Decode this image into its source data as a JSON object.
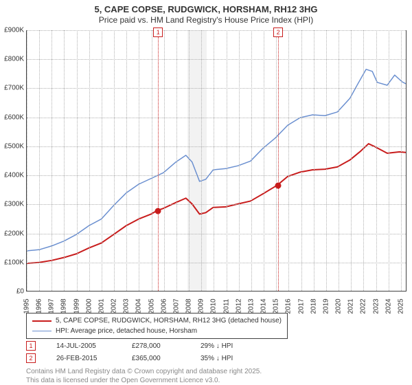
{
  "title": "5, CAPE COPSE, RUDGWICK, HORSHAM, RH12 3HG",
  "subtitle": "Price paid vs. HM Land Registry's House Price Index (HPI)",
  "chart": {
    "type": "line",
    "background_color": "#ffffff",
    "grid_color": "#b0b0b0",
    "axis_color": "#404040",
    "label_fontsize": 10,
    "title_fontsize": 13,
    "y": {
      "min": 0,
      "max": 900000,
      "step": 100000,
      "ticks": [
        "£0",
        "£100K",
        "£200K",
        "£300K",
        "£400K",
        "£500K",
        "£600K",
        "£700K",
        "£800K",
        "£900K"
      ]
    },
    "x": {
      "min": 1995,
      "max": 2025.5,
      "ticks": [
        1995,
        1996,
        1997,
        1998,
        1999,
        2000,
        2001,
        2002,
        2003,
        2004,
        2005,
        2006,
        2007,
        2008,
        2009,
        2010,
        2011,
        2012,
        2013,
        2014,
        2015,
        2016,
        2017,
        2018,
        2019,
        2020,
        2021,
        2022,
        2023,
        2024,
        2025
      ]
    },
    "shaded_bands": [
      {
        "start": 2007.9,
        "end": 2009.4,
        "color": "#e9e9e9"
      }
    ],
    "series": [
      {
        "label": "5, CAPE COPSE, RUDGWICK, HORSHAM, RH12 3HG (detached house)",
        "color": "#c81c1c",
        "line_width": 2,
        "points": [
          [
            1995,
            95000
          ],
          [
            1996,
            98000
          ],
          [
            1997,
            105000
          ],
          [
            1998,
            115000
          ],
          [
            1999,
            128000
          ],
          [
            2000,
            148000
          ],
          [
            2001,
            165000
          ],
          [
            2002,
            195000
          ],
          [
            2003,
            225000
          ],
          [
            2004,
            248000
          ],
          [
            2005,
            265000
          ],
          [
            2005.53,
            278000
          ],
          [
            2006,
            285000
          ],
          [
            2007,
            305000
          ],
          [
            2007.8,
            320000
          ],
          [
            2008.3,
            300000
          ],
          [
            2008.9,
            265000
          ],
          [
            2009.4,
            270000
          ],
          [
            2010,
            288000
          ],
          [
            2011,
            290000
          ],
          [
            2012,
            300000
          ],
          [
            2013,
            310000
          ],
          [
            2014,
            335000
          ],
          [
            2015.16,
            365000
          ],
          [
            2016,
            395000
          ],
          [
            2017,
            410000
          ],
          [
            2018,
            418000
          ],
          [
            2019,
            420000
          ],
          [
            2020,
            428000
          ],
          [
            2021,
            452000
          ],
          [
            2021.8,
            480000
          ],
          [
            2022.5,
            508000
          ],
          [
            2023,
            498000
          ],
          [
            2024,
            475000
          ],
          [
            2025,
            480000
          ],
          [
            2025.5,
            478000
          ]
        ]
      },
      {
        "label": "HPI: Average price, detached house, Horsham",
        "color": "#6a8fd0",
        "line_width": 1.5,
        "points": [
          [
            1995,
            138000
          ],
          [
            1996,
            142000
          ],
          [
            1997,
            155000
          ],
          [
            1998,
            172000
          ],
          [
            1999,
            195000
          ],
          [
            2000,
            225000
          ],
          [
            2001,
            248000
          ],
          [
            2002,
            295000
          ],
          [
            2003,
            338000
          ],
          [
            2004,
            368000
          ],
          [
            2005,
            388000
          ],
          [
            2006,
            408000
          ],
          [
            2007,
            445000
          ],
          [
            2007.8,
            468000
          ],
          [
            2008.3,
            445000
          ],
          [
            2008.9,
            378000
          ],
          [
            2009.4,
            385000
          ],
          [
            2010,
            418000
          ],
          [
            2011,
            422000
          ],
          [
            2012,
            432000
          ],
          [
            2013,
            448000
          ],
          [
            2014,
            492000
          ],
          [
            2015,
            528000
          ],
          [
            2016,
            572000
          ],
          [
            2017,
            598000
          ],
          [
            2018,
            608000
          ],
          [
            2019,
            605000
          ],
          [
            2020,
            618000
          ],
          [
            2021,
            665000
          ],
          [
            2021.6,
            712000
          ],
          [
            2022.3,
            765000
          ],
          [
            2022.8,
            758000
          ],
          [
            2023.2,
            720000
          ],
          [
            2024,
            710000
          ],
          [
            2024.6,
            745000
          ],
          [
            2025.2,
            722000
          ],
          [
            2025.5,
            715000
          ]
        ]
      }
    ],
    "events": [
      {
        "id": "1",
        "year": 2005.53,
        "date": "14-JUL-2005",
        "price": "£278,000",
        "delta": "29% ↓ HPI",
        "color": "#c81c1c",
        "value": 278000
      },
      {
        "id": "2",
        "year": 2015.16,
        "date": "26-FEB-2015",
        "price": "£365,000",
        "delta": "35% ↓ HPI",
        "color": "#c81c1c",
        "value": 365000
      }
    ]
  },
  "attribution": {
    "line1": "Contains HM Land Registry data © Crown copyright and database right 2025.",
    "line2": "This data is licensed under the Open Government Licence v3.0."
  }
}
